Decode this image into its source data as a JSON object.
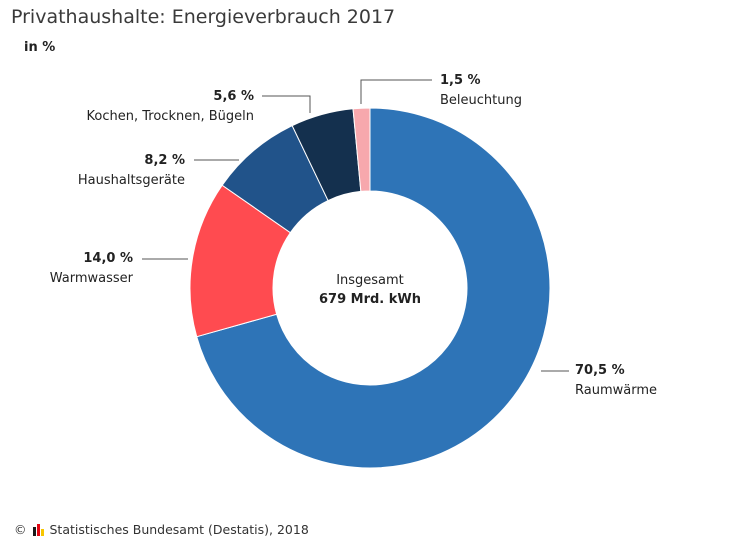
{
  "title": "Privathaushalte: Energieverbrauch 2017",
  "unit": "in %",
  "footer": {
    "copyright": "©",
    "source": "Statistisches Bundesamt (Destatis), 2018",
    "logo_colors": [
      "#1a1a1a",
      "#e30613",
      "#f7c600"
    ]
  },
  "chart_data": {
    "type": "pie",
    "variant": "donut",
    "center": {
      "line1": "Insgesamt",
      "line2": "679 Mrd. kWh"
    },
    "slices": [
      {
        "name": "Raumwärme",
        "value": 70.5,
        "label": "70,5 %",
        "color": "#2e74b7"
      },
      {
        "name": "Warmwasser",
        "value": 14.0,
        "label": "14,0 %",
        "color": "#ff4b50"
      },
      {
        "name": "Haushaltsgeräte",
        "value": 8.2,
        "label": "8,2 %",
        "color": "#21538a"
      },
      {
        "name": "Kochen, Trocknen, Bügeln",
        "value": 5.6,
        "label": "5,6 %",
        "color": "#14304e"
      },
      {
        "name": "Beleuchtung",
        "value": 1.5,
        "label": "1,5 %",
        "color": "#f7a8ad"
      }
    ]
  }
}
